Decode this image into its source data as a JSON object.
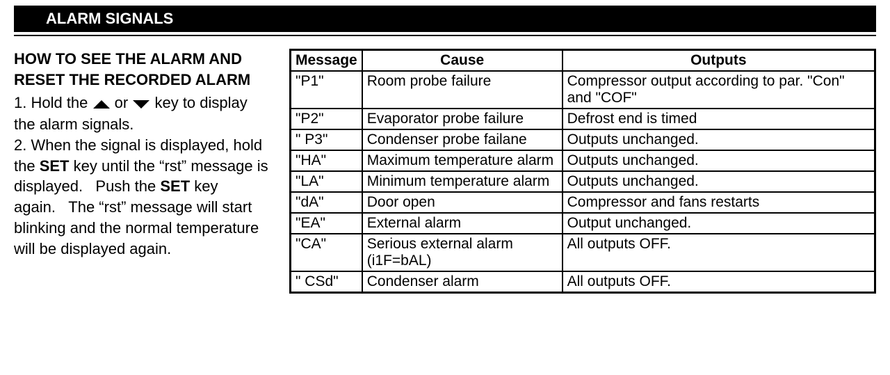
{
  "header": {
    "title": "ALARM SIGNALS"
  },
  "instructions": {
    "subhead": "HOW TO SEE THE ALARM AND RESET THE RECORDED ALARM",
    "line1_a": "1. Hold the",
    "line1_b": "or",
    "line1_c": "key to display the alarm signals.",
    "line2_a": "2. When the signal is displayed, hold the ",
    "line2_set1": "SET",
    "line2_b": " key until the “rst” message is displayed.   Push the ",
    "line2_set2": "SET",
    "line2_c": " key again.   The “rst” message will start blinking and the normal temperature will be displayed again."
  },
  "icons": {
    "up_arrow": "up-arrow-icon",
    "down_arrow": "down-arrow-icon"
  },
  "table": {
    "columns": [
      "Message",
      "Cause",
      "Outputs"
    ],
    "col_align": [
      "left",
      "center",
      "center"
    ],
    "rows": [
      {
        "msg": "\"P1\"",
        "cause": "Room probe  failure",
        "out": "Compressor output according to par. \"Con\" and \"COF\""
      },
      {
        "msg": "\"P2\"",
        "cause": "Evaporator probe  failure",
        "out": "Defrost end is timed"
      },
      {
        "msg": "\" P3\"",
        "cause": "Condenser  probe  failane",
        "out": "Outputs unchanged."
      },
      {
        "msg": "\"HA\"",
        "cause": "Maximum temperature alarm",
        "out": "Outputs unchanged."
      },
      {
        "msg": "\"LA\"",
        "cause": "Minimum temperature alarm",
        "out": "Outputs unchanged."
      },
      {
        "msg": "\"dA\"",
        "cause": "Door open",
        "out": "Compressor and fans restarts"
      },
      {
        "msg": "\"EA\"",
        "cause": "External alarm",
        "out": "Output unchanged."
      },
      {
        "msg": "\"CA\"",
        "cause": "Serious external alarm (i1F=bAL)",
        "out": "All outputs OFF."
      },
      {
        "msg": "\" CSd\"",
        "cause": "Condenser  alarm",
        "out": "All outputs OFF."
      }
    ],
    "border_color": "#000000",
    "header_bg": "#ffffff",
    "font_size": 21
  },
  "colors": {
    "text": "#000000",
    "header_bg": "#000000",
    "header_fg": "#ffffff",
    "page_bg": "#ffffff"
  }
}
